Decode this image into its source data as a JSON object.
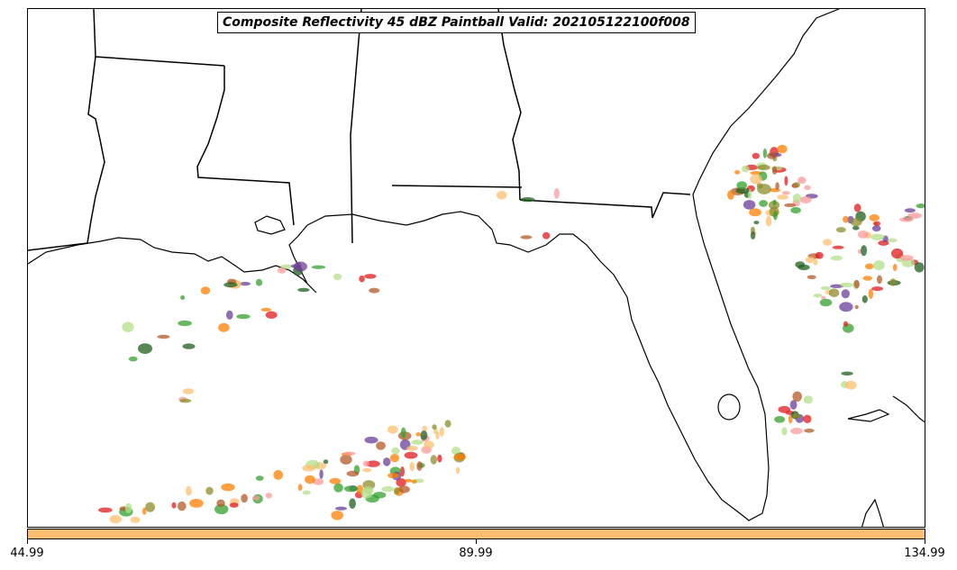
{
  "title": "Composite Reflectivity 45 dBZ Paintball Valid: 202105122100f008",
  "colorbar": {
    "color": "#fdbf6f",
    "ticks": [
      "44.99",
      "89.99",
      "134.99"
    ]
  },
  "member_colors": [
    "#e31a1c",
    "#fb9a99",
    "#ff7f00",
    "#fdbf6f",
    "#33a02c",
    "#b2df8a",
    "#6a3d9a",
    "#1f5f1f",
    "#b15928",
    "#8c8c2a"
  ],
  "map_layers": [
    "state-borders",
    "coastline",
    "reflectivity-paintball"
  ]
}
